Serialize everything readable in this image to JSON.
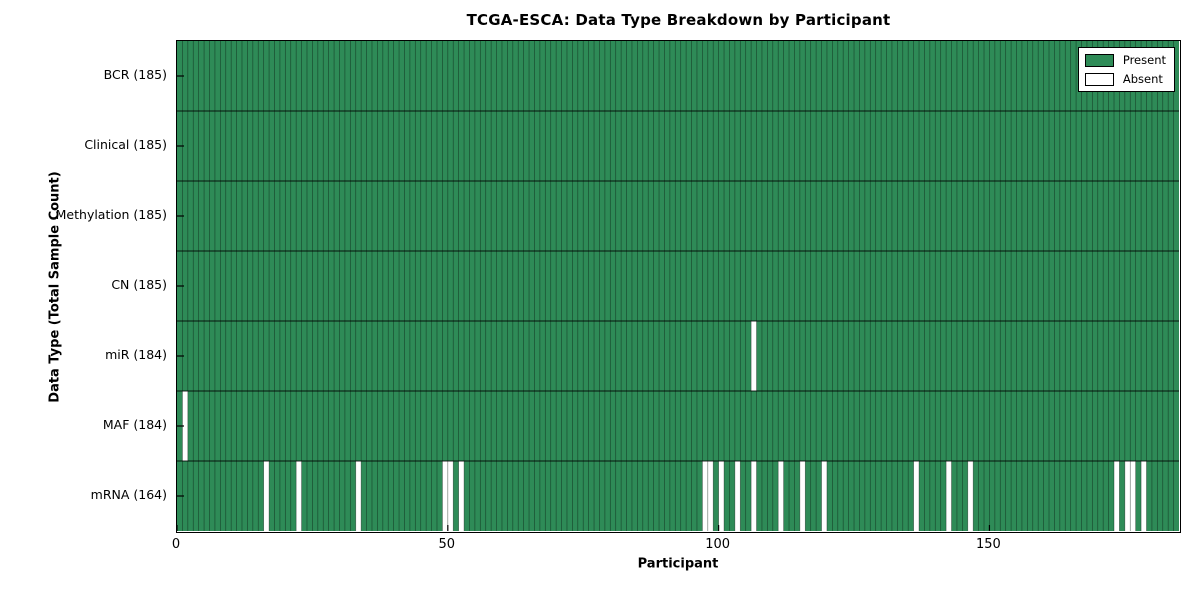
{
  "chart_data": {
    "type": "heatmap",
    "title": "TCGA-ESCA: Data Type Breakdown by Participant",
    "xlabel": "Participant",
    "ylabel": "Data Type (Total Sample Count)",
    "xlim": [
      0,
      185
    ],
    "n_participants": 185,
    "x_ticks": [
      0,
      50,
      100,
      150
    ],
    "grid": false,
    "legend_position": "upper right",
    "legend": [
      {
        "label": "Present",
        "color": "#2e8b57"
      },
      {
        "label": "Absent",
        "color": "#ffffff"
      }
    ],
    "colors": {
      "present": "#2e8b57",
      "absent": "#ffffff",
      "cell_edge": "rgba(0,0,0,0.45)",
      "row_separator": "#000000",
      "axes_border": "#000000"
    },
    "rows": [
      {
        "label": "BCR",
        "total": 185,
        "absent": []
      },
      {
        "label": "Clinical",
        "total": 185,
        "absent": []
      },
      {
        "label": "Methylation",
        "total": 185,
        "absent": []
      },
      {
        "label": "CN",
        "total": 185,
        "absent": []
      },
      {
        "label": "miR",
        "total": 184,
        "absent": [
          106
        ]
      },
      {
        "label": "MAF",
        "total": 184,
        "absent": [
          1
        ]
      },
      {
        "label": "mRNA",
        "total": 164,
        "absent": [
          16,
          22,
          33,
          49,
          50,
          52,
          97,
          98,
          100,
          103,
          106,
          111,
          115,
          119,
          136,
          142,
          146,
          173,
          175,
          176,
          178
        ]
      }
    ]
  }
}
